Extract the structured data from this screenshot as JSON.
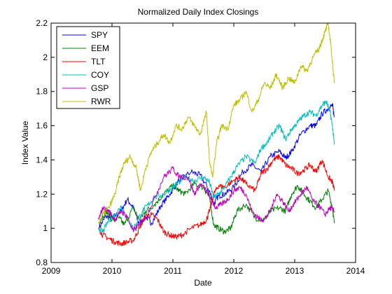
{
  "chart_data": {
    "type": "line",
    "title": "Normalized Daily Index Closings",
    "xlabel": "Date",
    "ylabel": "Index Value",
    "xlim": [
      2009,
      2014
    ],
    "ylim": [
      0.8,
      2.2
    ],
    "xticks": [
      2009,
      2010,
      2011,
      2012,
      2013,
      2014
    ],
    "yticks": [
      0.8,
      1,
      1.2,
      1.4,
      1.6,
      1.8,
      2,
      2.2
    ],
    "ytick_labels": [
      "0.8",
      "1",
      "1.2",
      "1.4",
      "1.6",
      "1.8",
      "2",
      "2.2"
    ],
    "grid": false,
    "legend_position": "top-left",
    "series": [
      {
        "name": "SPY",
        "color": "#0000ff",
        "x": [
          2009.78,
          2009.9,
          2010.0,
          2010.15,
          2010.25,
          2010.35,
          2010.45,
          2010.55,
          2010.65,
          2010.8,
          2010.95,
          2011.1,
          2011.3,
          2011.45,
          2011.6,
          2011.67,
          2011.75,
          2011.85,
          2012.0,
          2012.15,
          2012.3,
          2012.45,
          2012.6,
          2012.75,
          2012.85,
          2012.95,
          2013.1,
          2013.25,
          2013.35,
          2013.45,
          2013.55,
          2013.62,
          2013.65
        ],
        "y": [
          1.0,
          1.07,
          1.06,
          1.1,
          1.17,
          1.12,
          1.02,
          1.07,
          1.03,
          1.13,
          1.2,
          1.28,
          1.33,
          1.31,
          1.22,
          1.14,
          1.19,
          1.2,
          1.24,
          1.33,
          1.37,
          1.33,
          1.42,
          1.45,
          1.41,
          1.45,
          1.55,
          1.6,
          1.6,
          1.67,
          1.7,
          1.72,
          1.65
        ]
      },
      {
        "name": "EEM",
        "color": "#008000",
        "x": [
          2009.78,
          2009.9,
          2010.0,
          2010.12,
          2010.2,
          2010.35,
          2010.45,
          2010.55,
          2010.7,
          2010.85,
          2011.0,
          2011.1,
          2011.2,
          2011.35,
          2011.5,
          2011.6,
          2011.67,
          2011.75,
          2011.85,
          2011.95,
          2012.05,
          2012.2,
          2012.35,
          2012.5,
          2012.6,
          2012.75,
          2012.85,
          2012.95,
          2013.05,
          2013.15,
          2013.25,
          2013.35,
          2013.45,
          2013.55,
          2013.62,
          2013.65
        ],
        "y": [
          1.03,
          1.1,
          1.05,
          1.06,
          1.02,
          1.12,
          1.05,
          1.1,
          1.14,
          1.2,
          1.25,
          1.22,
          1.2,
          1.26,
          1.24,
          1.18,
          1.02,
          1.0,
          0.98,
          1.0,
          1.1,
          1.14,
          1.06,
          1.05,
          1.1,
          1.12,
          1.1,
          1.2,
          1.25,
          1.2,
          1.16,
          1.12,
          1.17,
          1.22,
          1.12,
          1.03
        ]
      },
      {
        "name": "TLT",
        "color": "#ff0000",
        "x": [
          2009.78,
          2009.85,
          2009.95,
          2010.05,
          2010.15,
          2010.25,
          2010.35,
          2010.45,
          2010.55,
          2010.65,
          2010.75,
          2010.85,
          2010.95,
          2011.05,
          2011.15,
          2011.3,
          2011.45,
          2011.55,
          2011.6,
          2011.67,
          2011.75,
          2011.85,
          2012.0,
          2012.1,
          2012.2,
          2012.35,
          2012.45,
          2012.55,
          2012.65,
          2012.75,
          2012.85,
          2012.95,
          2013.05,
          2013.15,
          2013.25,
          2013.35,
          2013.45,
          2013.55,
          2013.62,
          2013.65
        ],
        "y": [
          1.0,
          0.96,
          0.94,
          0.92,
          0.91,
          0.92,
          0.93,
          1.0,
          1.07,
          1.08,
          1.05,
          0.98,
          0.96,
          0.95,
          0.96,
          1.0,
          1.02,
          1.05,
          1.1,
          1.2,
          1.25,
          1.24,
          1.28,
          1.3,
          1.26,
          1.22,
          1.32,
          1.35,
          1.4,
          1.42,
          1.37,
          1.35,
          1.32,
          1.34,
          1.37,
          1.33,
          1.4,
          1.3,
          1.27,
          1.22
        ]
      },
      {
        "name": "COY",
        "color": "#00bfbf",
        "x": [
          2009.78,
          2009.85,
          2009.95,
          2010.05,
          2010.15,
          2010.25,
          2010.35,
          2010.5,
          2010.6,
          2010.7,
          2010.85,
          2011.0,
          2011.1,
          2011.2,
          2011.35,
          2011.5,
          2011.6,
          2011.67,
          2011.75,
          2011.85,
          2011.95,
          2012.05,
          2012.2,
          2012.35,
          2012.45,
          2012.55,
          2012.65,
          2012.75,
          2012.85,
          2012.95,
          2013.05,
          2013.15,
          2013.25,
          2013.35,
          2013.45,
          2013.52,
          2013.58,
          2013.62,
          2013.65
        ],
        "y": [
          1.0,
          0.98,
          1.05,
          1.08,
          1.13,
          1.06,
          1.0,
          1.1,
          1.14,
          1.18,
          1.2,
          1.24,
          1.27,
          1.3,
          1.28,
          1.3,
          1.27,
          1.18,
          1.2,
          1.24,
          1.3,
          1.36,
          1.42,
          1.38,
          1.47,
          1.5,
          1.56,
          1.6,
          1.52,
          1.58,
          1.62,
          1.66,
          1.68,
          1.66,
          1.72,
          1.74,
          1.68,
          1.6,
          1.49
        ]
      },
      {
        "name": "GSP",
        "color": "#bf00bf",
        "x": [
          2009.78,
          2009.85,
          2009.95,
          2010.05,
          2010.15,
          2010.25,
          2010.35,
          2010.45,
          2010.55,
          2010.7,
          2010.85,
          2011.0,
          2011.1,
          2011.25,
          2011.35,
          2011.45,
          2011.55,
          2011.62,
          2011.7,
          2011.8,
          2011.9,
          2012.0,
          2012.1,
          2012.2,
          2012.3,
          2012.4,
          2012.5,
          2012.6,
          2012.7,
          2012.8,
          2012.9,
          2013.0,
          2013.1,
          2013.2,
          2013.3,
          2013.4,
          2013.5,
          2013.58,
          2013.65
        ],
        "y": [
          1.05,
          1.12,
          1.1,
          1.05,
          1.1,
          1.07,
          0.98,
          1.03,
          1.06,
          1.18,
          1.3,
          1.35,
          1.3,
          1.3,
          1.2,
          1.26,
          1.22,
          1.18,
          1.12,
          1.14,
          1.17,
          1.22,
          1.24,
          1.2,
          1.1,
          1.06,
          1.05,
          1.1,
          1.2,
          1.16,
          1.1,
          1.15,
          1.2,
          1.24,
          1.16,
          1.13,
          1.08,
          1.12,
          1.1
        ]
      },
      {
        "name": "RWR",
        "color": "#bfbf00",
        "x": [
          2009.78,
          2009.85,
          2009.95,
          2010.05,
          2010.12,
          2010.2,
          2010.3,
          2010.4,
          2010.47,
          2010.55,
          2010.65,
          2010.75,
          2010.85,
          2010.95,
          2011.05,
          2011.15,
          2011.25,
          2011.35,
          2011.45,
          2011.55,
          2011.6,
          2011.65,
          2011.72,
          2011.8,
          2011.9,
          2012.0,
          2012.1,
          2012.2,
          2012.3,
          2012.4,
          2012.5,
          2012.6,
          2012.7,
          2012.8,
          2012.9,
          2013.0,
          2013.1,
          2013.2,
          2013.3,
          2013.4,
          2013.45,
          2013.5,
          2013.55,
          2013.6,
          2013.65
        ],
        "y": [
          1.03,
          1.08,
          1.12,
          1.2,
          1.3,
          1.38,
          1.42,
          1.35,
          1.22,
          1.35,
          1.45,
          1.5,
          1.55,
          1.5,
          1.6,
          1.58,
          1.65,
          1.6,
          1.55,
          1.68,
          1.4,
          1.3,
          1.5,
          1.6,
          1.58,
          1.72,
          1.75,
          1.8,
          1.68,
          1.75,
          1.85,
          1.82,
          1.9,
          1.82,
          1.88,
          1.85,
          1.95,
          1.92,
          2.0,
          2.05,
          2.1,
          2.15,
          2.2,
          2.05,
          1.85
        ]
      }
    ]
  }
}
